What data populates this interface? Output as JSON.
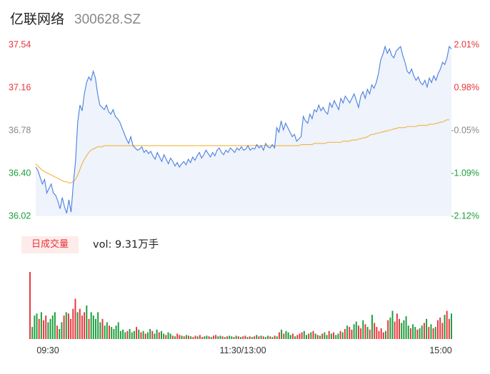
{
  "header": {
    "name": "亿联网络",
    "code": "300628.SZ"
  },
  "volume_panel": {
    "badge_label": "日成交量",
    "vol_label": "vol: 9.31万手"
  },
  "colors": {
    "up": "#e8343a",
    "down": "#1a9e3a",
    "neutral": "#888888",
    "price_line": "#4a7fe0",
    "price_fill": "#eef3fc",
    "avg_line": "#f4b23e"
  },
  "chart_data": {
    "type": "line",
    "title": "",
    "price_axis": {
      "min": 36.02,
      "max": 37.54,
      "tick_labels": [
        "37.54",
        "37.16",
        "36.78",
        "36.40",
        "36.02"
      ]
    },
    "percent_axis": {
      "tick_labels": [
        "2.01%",
        "0.98%",
        "-0.05%",
        "-1.09%",
        "-2.12%"
      ]
    },
    "x_tick_labels": [
      "09:30",
      "11:30/13:00",
      "15:00"
    ],
    "series": [
      {
        "key": "price",
        "values": [
          36.45,
          36.42,
          36.36,
          36.3,
          36.34,
          36.22,
          36.26,
          36.3,
          36.22,
          36.2,
          36.15,
          36.08,
          36.18,
          36.1,
          36.04,
          36.16,
          36.05,
          36.3,
          36.5,
          36.85,
          37.0,
          36.95,
          37.1,
          37.2,
          37.25,
          37.22,
          37.3,
          37.24,
          37.1,
          37.0,
          36.98,
          36.96,
          37.0,
          36.94,
          36.92,
          36.96,
          36.9,
          36.88,
          36.85,
          36.8,
          36.75,
          36.7,
          36.66,
          36.72,
          36.64,
          36.62,
          36.6,
          36.61,
          36.63,
          36.58,
          36.6,
          36.57,
          36.59,
          36.55,
          36.52,
          36.58,
          36.54,
          36.5,
          36.56,
          36.52,
          36.48,
          36.53,
          36.5,
          36.46,
          36.49,
          36.45,
          36.48,
          36.5,
          36.47,
          36.52,
          36.49,
          36.54,
          36.51,
          36.55,
          36.58,
          36.53,
          36.56,
          36.6,
          36.57,
          36.54,
          36.58,
          36.55,
          36.6,
          36.62,
          36.58,
          36.56,
          36.6,
          36.58,
          36.62,
          36.6,
          36.58,
          36.62,
          36.6,
          36.63,
          36.6,
          36.61,
          36.64,
          36.6,
          36.62,
          36.61,
          36.65,
          36.62,
          36.64,
          36.6,
          36.66,
          36.63,
          36.62,
          36.65,
          36.62,
          36.8,
          36.76,
          36.86,
          36.78,
          36.84,
          36.8,
          36.76,
          36.72,
          36.74,
          36.68,
          36.7,
          36.72,
          36.9,
          36.86,
          36.84,
          36.92,
          36.88,
          36.96,
          36.94,
          37.0,
          36.95,
          36.98,
          36.94,
          36.92,
          37.02,
          36.98,
          37.04,
          37.0,
          36.96,
          37.06,
          37.02,
          37.08,
          37.05,
          37.02,
          37.06,
          37.1,
          37.04,
          36.98,
          37.08,
          37.12,
          37.06,
          37.14,
          37.1,
          37.18,
          37.15,
          37.2,
          37.28,
          37.4,
          37.45,
          37.52,
          37.46,
          37.5,
          37.44,
          37.42,
          37.48,
          37.5,
          37.52,
          37.44,
          37.38,
          37.3,
          37.28,
          37.32,
          37.26,
          37.22,
          37.25,
          37.2,
          37.18,
          37.22,
          37.16,
          37.24,
          37.2,
          37.26,
          37.22,
          37.28,
          37.32,
          37.38,
          37.36,
          37.42,
          37.52,
          37.5
        ]
      },
      {
        "key": "average",
        "values": [
          36.48,
          36.46,
          36.44,
          36.42,
          36.41,
          36.4,
          36.39,
          36.38,
          36.37,
          36.36,
          36.35,
          36.34,
          36.33,
          36.32,
          36.32,
          36.31,
          36.31,
          36.32,
          36.34,
          36.38,
          36.43,
          36.48,
          36.52,
          36.55,
          36.58,
          36.6,
          36.61,
          36.62,
          36.63,
          36.63,
          36.63,
          36.64,
          36.64,
          36.64,
          36.64,
          36.64,
          36.64,
          36.64,
          36.64,
          36.64,
          36.64,
          36.64,
          36.64,
          36.64,
          36.64,
          36.64,
          36.64,
          36.64,
          36.64,
          36.64,
          36.64,
          36.64,
          36.64,
          36.64,
          36.64,
          36.64,
          36.64,
          36.64,
          36.64,
          36.64,
          36.64,
          36.64,
          36.64,
          36.64,
          36.64,
          36.64,
          36.64,
          36.64,
          36.64,
          36.64,
          36.64,
          36.64,
          36.64,
          36.64,
          36.64,
          36.64,
          36.64,
          36.64,
          36.64,
          36.64,
          36.64,
          36.64,
          36.64,
          36.64,
          36.64,
          36.64,
          36.64,
          36.64,
          36.64,
          36.64,
          36.64,
          36.64,
          36.64,
          36.64,
          36.64,
          36.64,
          36.64,
          36.64,
          36.64,
          36.64,
          36.64,
          36.64,
          36.64,
          36.64,
          36.64,
          36.64,
          36.64,
          36.64,
          36.64,
          36.64,
          36.64,
          36.64,
          36.64,
          36.64,
          36.64,
          36.64,
          36.64,
          36.64,
          36.64,
          36.64,
          36.65,
          36.65,
          36.65,
          36.65,
          36.65,
          36.65,
          36.66,
          36.66,
          36.66,
          36.66,
          36.66,
          36.66,
          36.67,
          36.67,
          36.67,
          36.67,
          36.67,
          36.67,
          36.67,
          36.68,
          36.68,
          36.68,
          36.68,
          36.69,
          36.69,
          36.69,
          36.7,
          36.7,
          36.71,
          36.71,
          36.72,
          36.73,
          36.74,
          36.74,
          36.75,
          36.75,
          36.76,
          36.76,
          36.77,
          36.77,
          36.78,
          36.78,
          36.79,
          36.79,
          36.8,
          36.8,
          36.8,
          36.8,
          36.81,
          36.81,
          36.81,
          36.81,
          36.81,
          36.82,
          36.82,
          36.82,
          36.82,
          36.82,
          36.83,
          36.83,
          36.83,
          36.84,
          36.84,
          36.85,
          36.85,
          36.86,
          36.87,
          36.87
        ]
      }
    ],
    "volume": {
      "ylim": [
        0,
        100
      ],
      "values": [
        100,
        18,
        35,
        38,
        30,
        40,
        28,
        35,
        25,
        30,
        35,
        40,
        20,
        15,
        25,
        35,
        40,
        38,
        30,
        45,
        60,
        40,
        45,
        35,
        40,
        50,
        30,
        40,
        35,
        30,
        40,
        25,
        30,
        20,
        25,
        20,
        18,
        15,
        20,
        25,
        12,
        14,
        10,
        12,
        15,
        10,
        12,
        18,
        14,
        10,
        12,
        8,
        10,
        15,
        12,
        8,
        14,
        10,
        12,
        8,
        6,
        10,
        8,
        5,
        4,
        8,
        6,
        5,
        4,
        6,
        5,
        4,
        3,
        5,
        4,
        6,
        3,
        4,
        5,
        4,
        3,
        5,
        6,
        4,
        5,
        4,
        3,
        4,
        5,
        4,
        3,
        5,
        4,
        3,
        4,
        5,
        3,
        4,
        3,
        4,
        6,
        4,
        5,
        4,
        3,
        5,
        4,
        3,
        5,
        4,
        10,
        14,
        8,
        12,
        10,
        6,
        8,
        4,
        6,
        8,
        10,
        12,
        6,
        8,
        10,
        12,
        8,
        6,
        5,
        8,
        10,
        6,
        12,
        8,
        10,
        6,
        8,
        12,
        10,
        15,
        20,
        18,
        14,
        22,
        26,
        20,
        16,
        28,
        22,
        18,
        14,
        36,
        24,
        18,
        12,
        16,
        10,
        12,
        28,
        32,
        42,
        26,
        38,
        30,
        24,
        28,
        34,
        20,
        16,
        22,
        18,
        14,
        16,
        20,
        24,
        30,
        18,
        22,
        16,
        18,
        28,
        32,
        24,
        36,
        42,
        30,
        38
      ]
    }
  }
}
